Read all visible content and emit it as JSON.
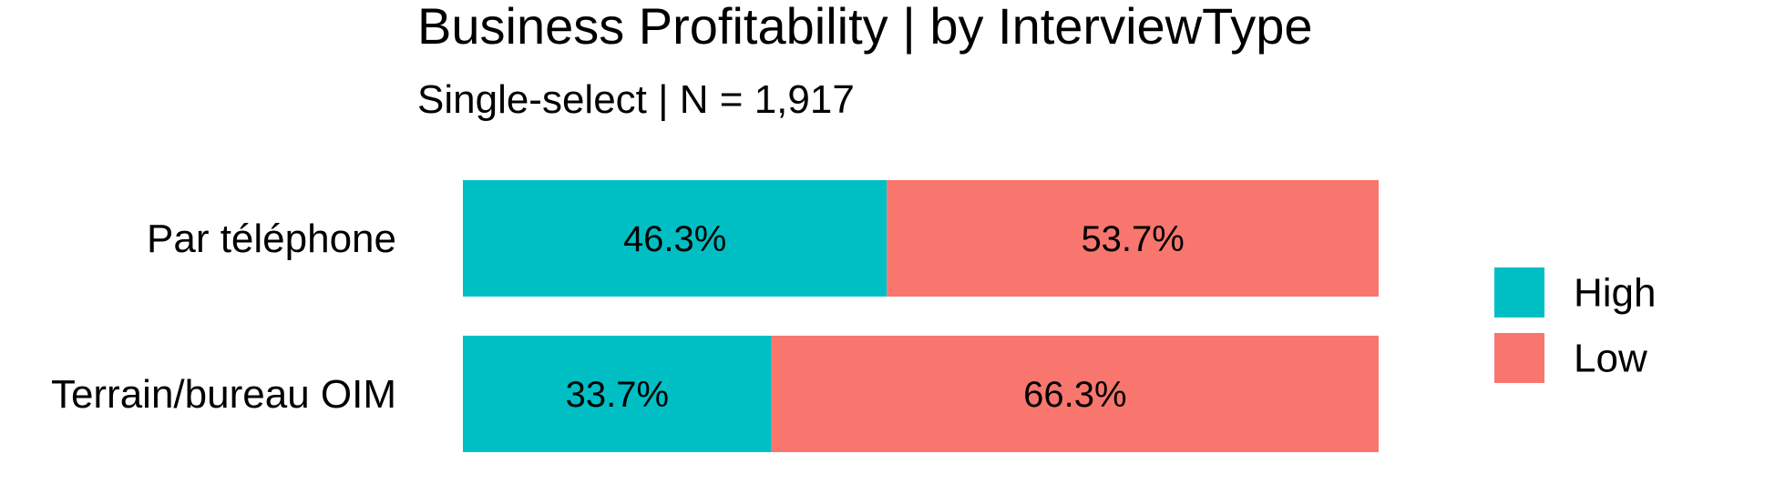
{
  "chart_data": {
    "type": "bar",
    "orientation": "horizontal",
    "stacked": true,
    "title": "Business Profitability | by InterviewType",
    "subtitle": "Single-select | N = 1,917",
    "categories": [
      "Par téléphone",
      "Terrain/bureau OIM"
    ],
    "series": [
      {
        "name": "High",
        "color": "#00BFC4",
        "values": [
          46.3,
          33.7
        ],
        "labels": [
          "46.3%",
          "33.7%"
        ]
      },
      {
        "name": "Low",
        "color": "#F8766D",
        "values": [
          53.7,
          66.3
        ],
        "labels": [
          "53.7%",
          "66.3%"
        ]
      }
    ],
    "xlim": [
      0,
      100
    ],
    "grid": false,
    "legend_position": "right"
  }
}
